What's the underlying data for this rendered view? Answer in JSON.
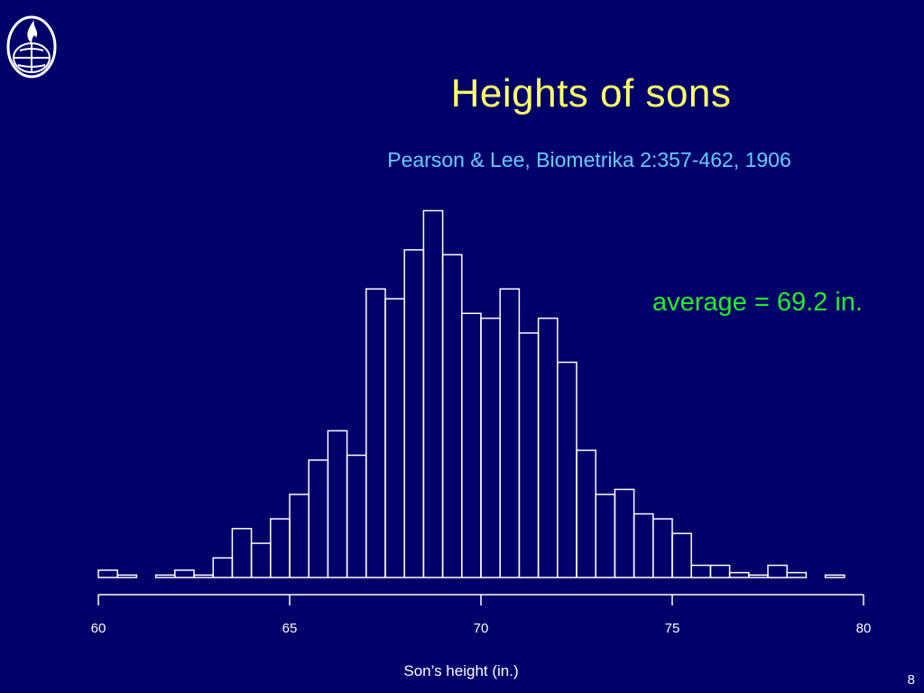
{
  "slide": {
    "title": "Heights of sons",
    "subtitle": "Pearson & Lee, Biometrika 2:357-462, 1906",
    "annotation": "average = 69.2 in.",
    "page_number": "8",
    "logo_icon": "globe-flame-logo-icon"
  },
  "colors": {
    "background": "#00006b",
    "title": "#ffff66",
    "subtitle": "#66ccff",
    "annotation": "#22ee22",
    "bars": "#ffffff"
  },
  "chart_data": {
    "type": "bar",
    "histogram": true,
    "xlabel": "Son’s height (in.)",
    "ylabel": "",
    "xlim": [
      60,
      80
    ],
    "xticks": [
      60,
      65,
      70,
      75,
      80
    ],
    "bin_width": 0.5,
    "y_axis_shown": false,
    "x": [
      60.0,
      60.5,
      61.0,
      61.5,
      62.0,
      62.5,
      63.0,
      63.5,
      64.0,
      64.5,
      65.0,
      65.5,
      66.0,
      66.5,
      67.0,
      67.5,
      68.0,
      68.5,
      69.0,
      69.5,
      70.0,
      70.5,
      71.0,
      71.5,
      72.0,
      72.5,
      73.0,
      73.5,
      74.0,
      74.5,
      75.0,
      75.5,
      76.0,
      76.5,
      77.0,
      77.5,
      78.0,
      78.5,
      79.0
    ],
    "values": [
      1.5,
      0.5,
      0,
      0.5,
      1.5,
      0.5,
      4.0,
      10.0,
      7.0,
      12.0,
      17.0,
      24.0,
      30.0,
      25.0,
      59.0,
      57.0,
      67.0,
      75.0,
      66.0,
      54.0,
      53.0,
      59.0,
      50.0,
      53.0,
      44.0,
      26.0,
      17.0,
      18.0,
      13.0,
      12.0,
      9.0,
      2.5,
      2.5,
      1.0,
      0.5,
      2.5,
      1.0,
      0,
      0.5
    ]
  }
}
